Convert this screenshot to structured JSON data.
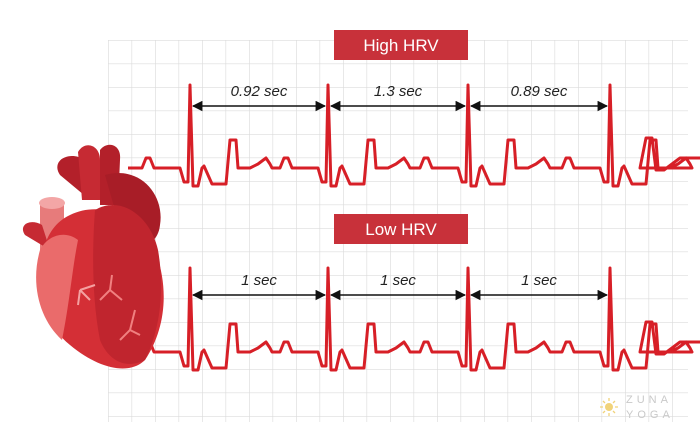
{
  "panels": [
    {
      "title": "High HRV",
      "intervals": [
        "0.92 sec",
        "1.3 sec",
        "0.89 sec"
      ]
    },
    {
      "title": "Low HRV",
      "intervals": [
        "1 sec",
        "1 sec",
        "1 sec"
      ]
    }
  ],
  "logo": {
    "line1": "ZUNA",
    "line2": "YOGA"
  }
}
